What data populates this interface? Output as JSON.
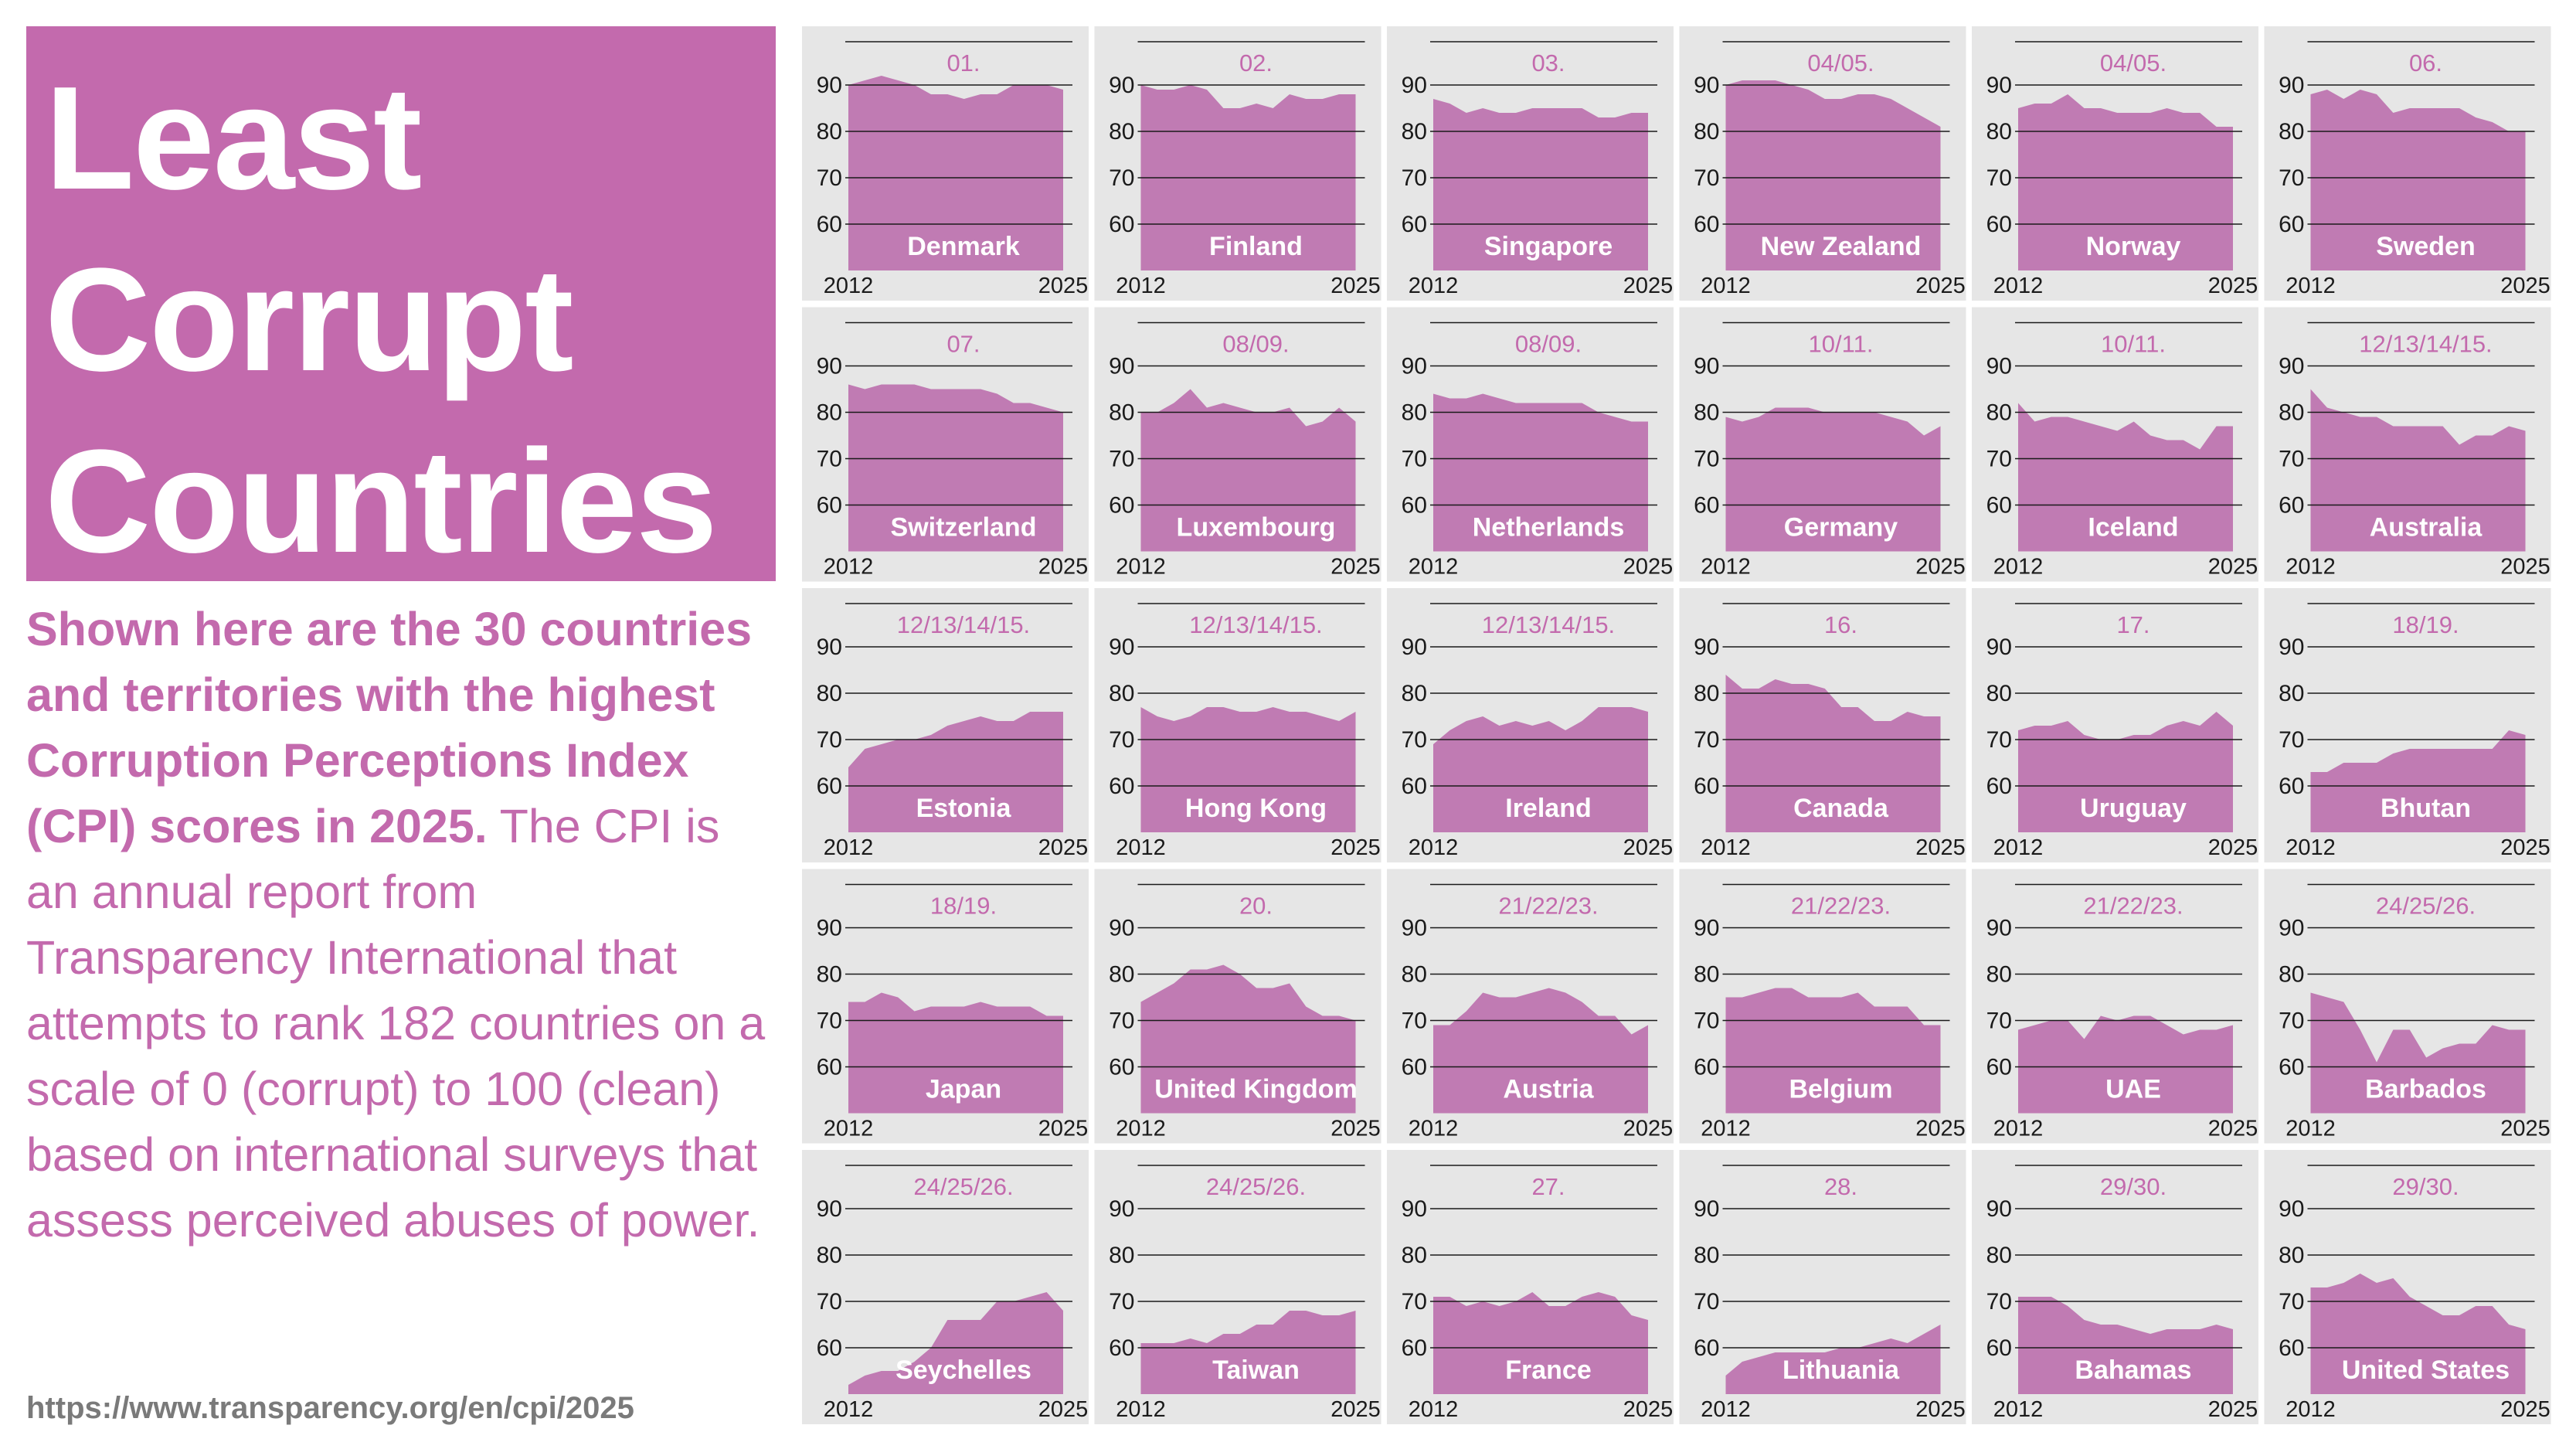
{
  "title": {
    "lines": [
      "Least",
      "Corrupt",
      "Countries"
    ]
  },
  "description": {
    "bold": "Shown here are the 30 countries and territories with the highest Corruption Perceptions Index (CPI) scores in 2025.",
    "normal": "The CPI is an annual report from Transparency International that attempts to rank 182 countries on a scale of 0 (corrupt) to 100 (clean) based on international surveys that assess perceived abuses of power."
  },
  "source": "https://www.transparency.org/en/cpi/2025",
  "colors": {
    "accent": "#c36aad",
    "area": "#c07bb3",
    "panel_bg": "#e6e6e6",
    "source_text": "#7a7a7a"
  },
  "chart_data": {
    "type": "area",
    "x_start_label": "2012",
    "x_end_label": "2025",
    "x": [
      2012,
      2013,
      2014,
      2015,
      2016,
      2017,
      2018,
      2019,
      2020,
      2021,
      2022,
      2023,
      2024,
      2025
    ],
    "y_ticks": [
      90,
      80,
      70,
      60
    ],
    "ylim": [
      50,
      100
    ],
    "panels": [
      {
        "rank": "01.",
        "country": "Denmark",
        "values": [
          90,
          91,
          92,
          91,
          90,
          88,
          88,
          87,
          88,
          88,
          90,
          90,
          90,
          89
        ]
      },
      {
        "rank": "02.",
        "country": "Finland",
        "values": [
          90,
          89,
          89,
          90,
          89,
          85,
          85,
          86,
          85,
          88,
          87,
          87,
          88,
          88
        ]
      },
      {
        "rank": "03.",
        "country": "Singapore",
        "values": [
          87,
          86,
          84,
          85,
          84,
          84,
          85,
          85,
          85,
          85,
          83,
          83,
          84,
          84
        ]
      },
      {
        "rank": "04/05.",
        "country": "New Zealand",
        "values": [
          90,
          91,
          91,
          91,
          90,
          89,
          87,
          87,
          88,
          88,
          87,
          85,
          83,
          81
        ]
      },
      {
        "rank": "04/05.",
        "country": "Norway",
        "values": [
          85,
          86,
          86,
          88,
          85,
          85,
          84,
          84,
          84,
          85,
          84,
          84,
          81,
          81
        ]
      },
      {
        "rank": "06.",
        "country": "Sweden",
        "values": [
          88,
          89,
          87,
          89,
          88,
          84,
          85,
          85,
          85,
          85,
          83,
          82,
          80,
          80
        ]
      },
      {
        "rank": "07.",
        "country": "Switzerland",
        "values": [
          86,
          85,
          86,
          86,
          86,
          85,
          85,
          85,
          85,
          84,
          82,
          82,
          81,
          80
        ]
      },
      {
        "rank": "08/09.",
        "country": "Luxembourg",
        "values": [
          80,
          80,
          82,
          85,
          81,
          82,
          81,
          80,
          80,
          81,
          77,
          78,
          81,
          78
        ]
      },
      {
        "rank": "08/09.",
        "country": "Netherlands",
        "values": [
          84,
          83,
          83,
          84,
          83,
          82,
          82,
          82,
          82,
          82,
          80,
          79,
          78,
          78
        ]
      },
      {
        "rank": "10/11.",
        "country": "Germany",
        "values": [
          79,
          78,
          79,
          81,
          81,
          81,
          80,
          80,
          80,
          80,
          79,
          78,
          75,
          77
        ]
      },
      {
        "rank": "10/11.",
        "country": "Iceland",
        "values": [
          82,
          78,
          79,
          79,
          78,
          77,
          76,
          78,
          75,
          74,
          74,
          72,
          77,
          77
        ]
      },
      {
        "rank": "12/13/14/15.",
        "country": "Australia",
        "values": [
          85,
          81,
          80,
          79,
          79,
          77,
          77,
          77,
          77,
          73,
          75,
          75,
          77,
          76
        ]
      },
      {
        "rank": "12/13/14/15.",
        "country": "Estonia",
        "values": [
          64,
          68,
          69,
          70,
          70,
          71,
          73,
          74,
          75,
          74,
          74,
          76,
          76,
          76
        ]
      },
      {
        "rank": "12/13/14/15.",
        "country": "Hong Kong",
        "values": [
          77,
          75,
          74,
          75,
          77,
          77,
          76,
          76,
          77,
          76,
          76,
          75,
          74,
          76
        ]
      },
      {
        "rank": "12/13/14/15.",
        "country": "Ireland",
        "values": [
          69,
          72,
          74,
          75,
          73,
          74,
          73,
          74,
          72,
          74,
          77,
          77,
          77,
          76
        ]
      },
      {
        "rank": "16.",
        "country": "Canada",
        "values": [
          84,
          81,
          81,
          83,
          82,
          82,
          81,
          77,
          77,
          74,
          74,
          76,
          75,
          75
        ]
      },
      {
        "rank": "17.",
        "country": "Uruguay",
        "values": [
          72,
          73,
          73,
          74,
          71,
          70,
          70,
          71,
          71,
          73,
          74,
          73,
          76,
          73
        ]
      },
      {
        "rank": "18/19.",
        "country": "Bhutan",
        "values": [
          63,
          63,
          65,
          65,
          65,
          67,
          68,
          68,
          68,
          68,
          68,
          68,
          72,
          71
        ]
      },
      {
        "rank": "18/19.",
        "country": "Japan",
        "values": [
          74,
          74,
          76,
          75,
          72,
          73,
          73,
          73,
          74,
          73,
          73,
          73,
          71,
          71
        ]
      },
      {
        "rank": "20.",
        "country": "United Kingdom",
        "values": [
          74,
          76,
          78,
          81,
          81,
          82,
          80,
          77,
          77,
          78,
          73,
          71,
          71,
          70
        ]
      },
      {
        "rank": "21/22/23.",
        "country": "Austria",
        "values": [
          69,
          69,
          72,
          76,
          75,
          75,
          76,
          77,
          76,
          74,
          71,
          71,
          67,
          69
        ]
      },
      {
        "rank": "21/22/23.",
        "country": "Belgium",
        "values": [
          75,
          75,
          76,
          77,
          77,
          75,
          75,
          75,
          76,
          73,
          73,
          73,
          69,
          69
        ]
      },
      {
        "rank": "21/22/23.",
        "country": "UAE",
        "values": [
          68,
          69,
          70,
          70,
          66,
          71,
          70,
          71,
          71,
          69,
          67,
          68,
          68,
          69
        ]
      },
      {
        "rank": "24/25/26.",
        "country": "Barbados",
        "values": [
          76,
          75,
          74,
          68,
          61,
          68,
          68,
          62,
          64,
          65,
          65,
          69,
          68,
          68
        ]
      },
      {
        "rank": "24/25/26.",
        "country": "Seychelles",
        "values": [
          52,
          54,
          55,
          55,
          57,
          60,
          66,
          66,
          66,
          70,
          70,
          71,
          72,
          68
        ]
      },
      {
        "rank": "24/25/26.",
        "country": "Taiwan",
        "values": [
          61,
          61,
          61,
          62,
          61,
          63,
          63,
          65,
          65,
          68,
          68,
          67,
          67,
          68
        ]
      },
      {
        "rank": "27.",
        "country": "France",
        "values": [
          71,
          71,
          69,
          70,
          69,
          70,
          72,
          69,
          69,
          71,
          72,
          71,
          67,
          66
        ]
      },
      {
        "rank": "28.",
        "country": "Lithuania",
        "values": [
          54,
          57,
          58,
          59,
          59,
          59,
          59,
          60,
          60,
          61,
          62,
          61,
          63,
          65
        ]
      },
      {
        "rank": "29/30.",
        "country": "Bahamas",
        "values": [
          71,
          71,
          71,
          69,
          66,
          65,
          65,
          64,
          63,
          64,
          64,
          64,
          65,
          64
        ]
      },
      {
        "rank": "29/30.",
        "country": "United States",
        "values": [
          73,
          73,
          74,
          76,
          74,
          75,
          71,
          69,
          67,
          67,
          69,
          69,
          65,
          64
        ]
      }
    ]
  }
}
